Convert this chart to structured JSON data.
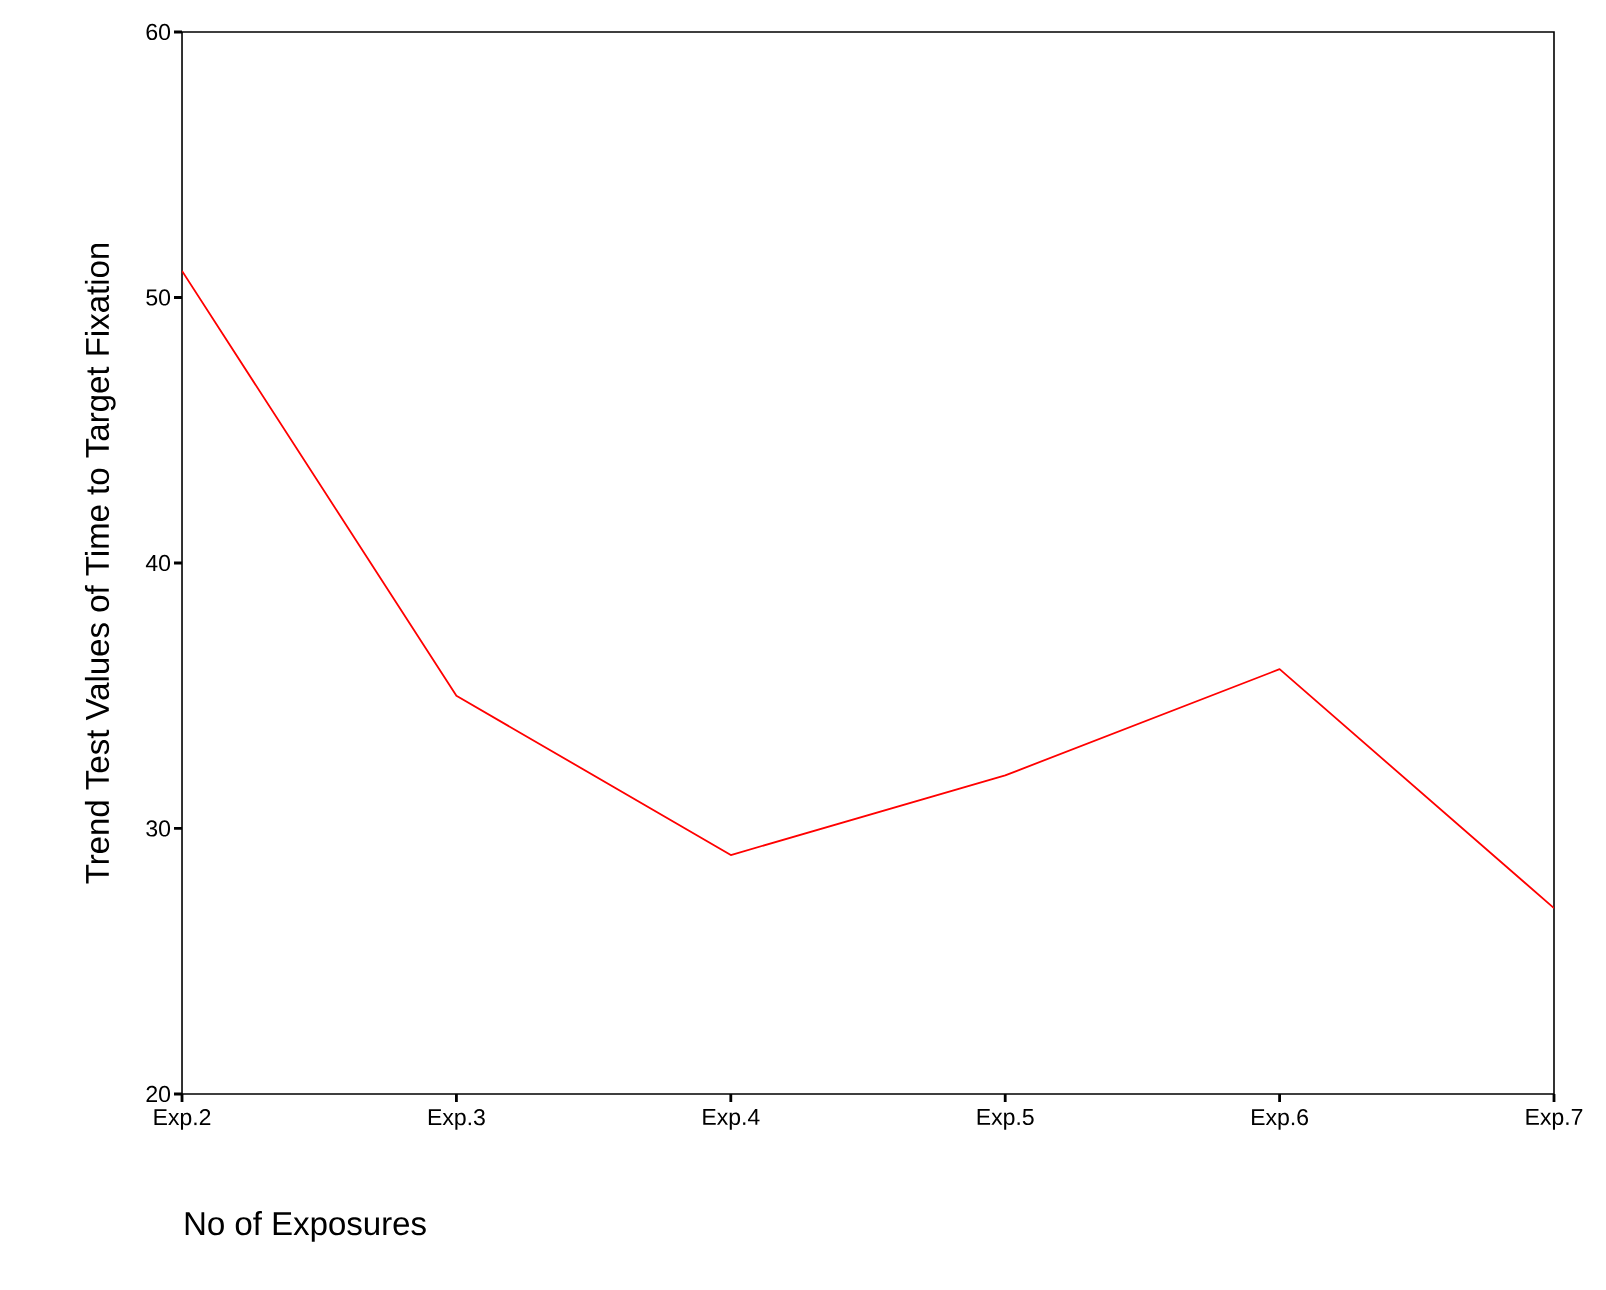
{
  "chart_data": {
    "type": "line",
    "xlabel": "No of Exposures",
    "ylabel": "Trend Test Values of Time to Target Fixation",
    "categories": [
      "Exp.2",
      "Exp.3",
      "Exp.4",
      "Exp.5",
      "Exp.6",
      "Exp.7"
    ],
    "series": [
      {
        "color": "#ff0000",
        "values": [
          51,
          35,
          29,
          32,
          36,
          27
        ]
      }
    ],
    "ylim": [
      20,
      60
    ],
    "yticks": [
      20,
      30,
      40,
      50,
      60
    ],
    "marker": "none",
    "line_style": "solid"
  }
}
